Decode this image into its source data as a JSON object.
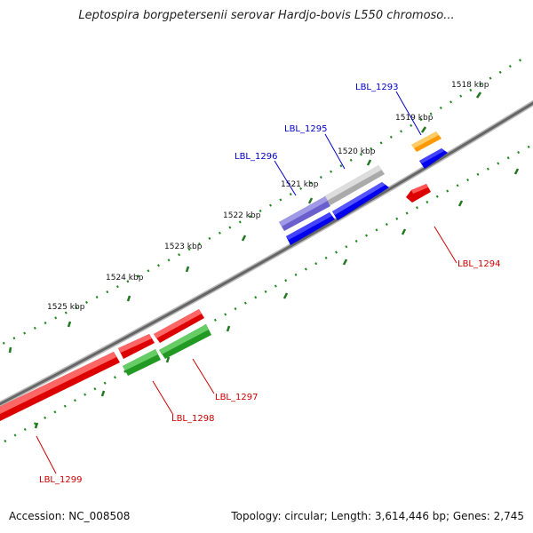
{
  "title": "Leptospira borgpetersenii serovar Hardjo-bovis L550 chromoso...",
  "footer": {
    "accession": "Accession: NC_008508",
    "info": "Topology: circular; Length: 3,614,446 bp; Genes: 2,745"
  },
  "ruler": {
    "labels": [
      "1518 kbp",
      "1519 kbp",
      "1520 kbp",
      "1521 kbp",
      "1522 kbp",
      "1523 kbp",
      "1524 kbp",
      "1525 kbp"
    ]
  },
  "genes": [
    {
      "name": "LBL_1293",
      "strand": "forward",
      "color": "#ff9900"
    },
    {
      "name": "LBL_1294",
      "strand": "reverse",
      "color": "#ff0000"
    },
    {
      "name": "LBL_1295",
      "strand": "forward",
      "color": "#0000ff"
    },
    {
      "name": "LBL_1296",
      "strand": "forward",
      "color": "#7a6fd6"
    },
    {
      "name": "LBL_1297",
      "strand": "reverse",
      "color": "#33aa33"
    },
    {
      "name": "LBL_1298",
      "strand": "reverse",
      "color": "#ff0000"
    },
    {
      "name": "LBL_1299",
      "strand": "reverse",
      "color": "#ff0000"
    }
  ],
  "colors": {
    "forward_label": "#0000cc",
    "reverse_label": "#cc0000",
    "tick": "#227722",
    "backbone": "#777777",
    "gray_feature": "#bbbbbb"
  }
}
